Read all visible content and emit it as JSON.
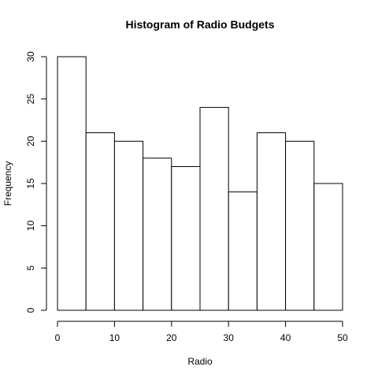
{
  "chart_data": {
    "type": "bar",
    "title": "Histogram of Radio Budgets",
    "xlabel": "Radio",
    "ylabel": "Frequency",
    "bins": [
      {
        "x0": 0,
        "x1": 5,
        "value": 30
      },
      {
        "x0": 5,
        "x1": 10,
        "value": 21
      },
      {
        "x0": 10,
        "x1": 15,
        "value": 20
      },
      {
        "x0": 15,
        "x1": 20,
        "value": 18
      },
      {
        "x0": 20,
        "x1": 25,
        "value": 17
      },
      {
        "x0": 25,
        "x1": 30,
        "value": 24
      },
      {
        "x0": 30,
        "x1": 35,
        "value": 14
      },
      {
        "x0": 35,
        "x1": 40,
        "value": 21
      },
      {
        "x0": 40,
        "x1": 45,
        "value": 20
      },
      {
        "x0": 45,
        "x1": 50,
        "value": 15
      }
    ],
    "xlim": [
      0,
      50
    ],
    "ylim": [
      0,
      30
    ],
    "xticks": [
      0,
      10,
      20,
      30,
      40,
      50
    ],
    "yticks": [
      0,
      5,
      10,
      15,
      20,
      25,
      30
    ],
    "grid": false,
    "bar_fill": "#ffffff",
    "bar_stroke": "#000000"
  }
}
